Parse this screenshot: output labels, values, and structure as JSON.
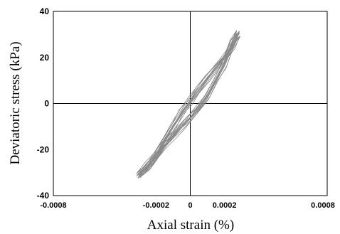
{
  "chart_data": {
    "type": "line",
    "title": "",
    "xlabel": "Axial strain (%)",
    "ylabel": "Deviatoric stress (kPa)",
    "xlim": [
      -0.0008,
      0.0008
    ],
    "ylim": [
      -40,
      40
    ],
    "x_ticks": [
      -0.0008,
      -0.0002,
      0,
      0.0002,
      0.0008
    ],
    "x_tick_labels": [
      "-0.0008",
      "-0.0002",
      "0",
      "0.0002",
      "0.0008"
    ],
    "y_ticks": [
      -40,
      -20,
      0,
      20,
      40
    ],
    "y_tick_labels": [
      "-40",
      "-20",
      "0",
      "20",
      "40"
    ],
    "grid": false,
    "zero_lines": true,
    "line_color": "#8a8a8a",
    "axis_color": "#000000",
    "series": [
      {
        "x": [
          -0.0003,
          -0.00025,
          -0.0002,
          -0.00015,
          -0.0001,
          -5e-05,
          0.0,
          5e-05,
          0.0001,
          0.00015,
          0.0002,
          0.00025,
          0.00028
        ],
        "y": [
          -31.0,
          -28.0,
          -23.0,
          -16.0,
          -10.0,
          -4.0,
          1.0,
          6.0,
          11.0,
          15.5,
          20.0,
          25.0,
          30.5
        ]
      },
      {
        "x": [
          0.00028,
          0.00025,
          0.0002,
          0.00015,
          0.0001,
          5e-05,
          0.0,
          -5e-05,
          -0.0001,
          -0.00015,
          -0.0002,
          -0.00025,
          -0.0003
        ],
        "y": [
          30.5,
          27.0,
          17.0,
          10.0,
          3.0,
          -2.0,
          -6.0,
          -10.0,
          -14.0,
          -18.0,
          -23.0,
          -27.0,
          -31.0
        ]
      }
    ]
  }
}
